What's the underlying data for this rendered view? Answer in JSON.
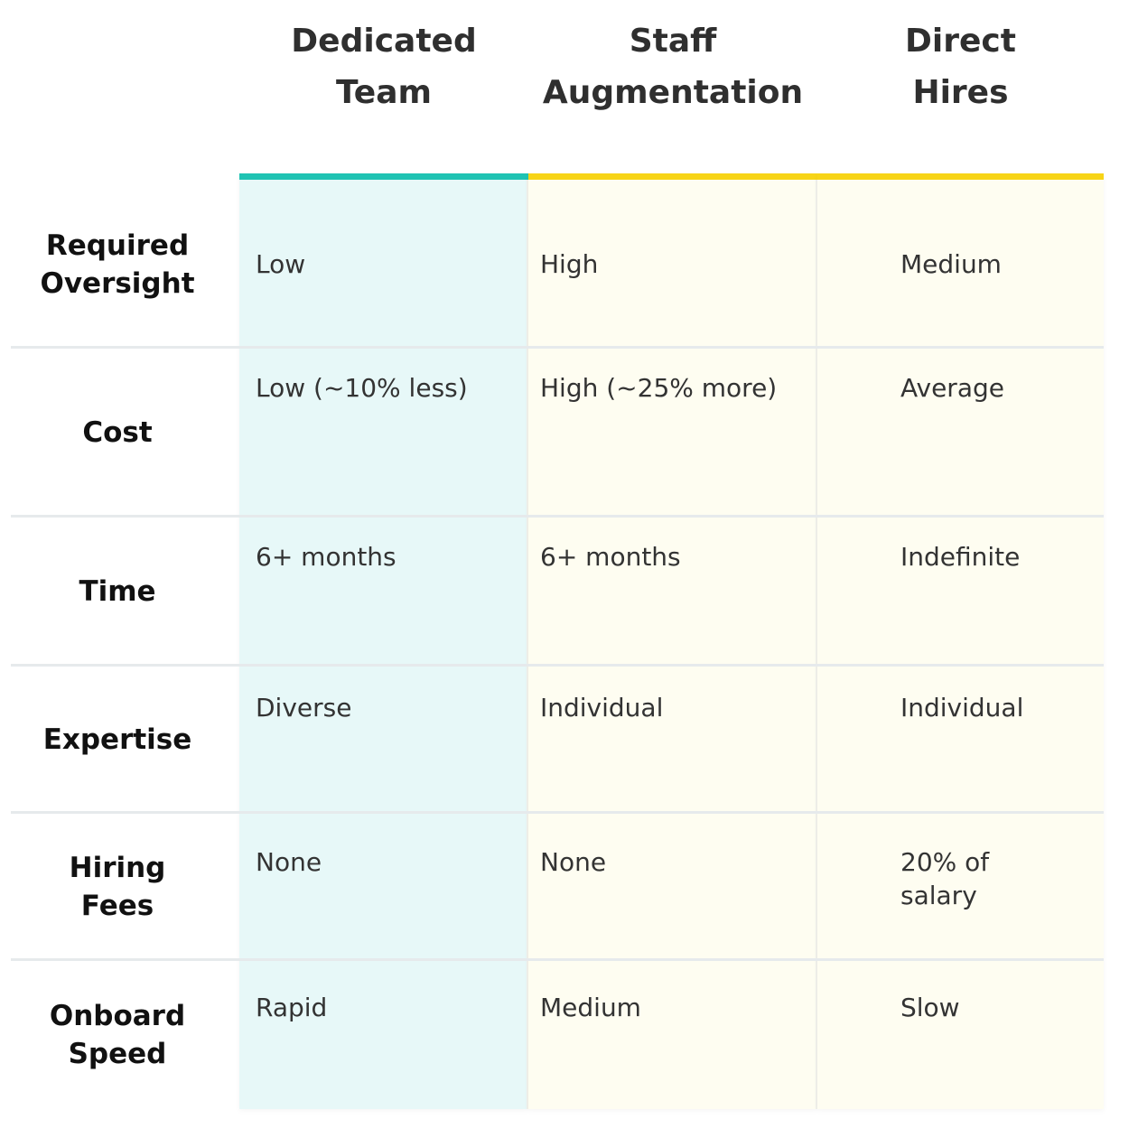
{
  "header": {
    "columns": [
      [
        "Dedicated",
        "Team"
      ],
      [
        "Staff",
        "Augmentation"
      ],
      [
        "Direct",
        "Hires"
      ]
    ]
  },
  "table": {
    "rows": [
      {
        "label": [
          "Required",
          "Oversight"
        ],
        "cells": [
          [
            "Low"
          ],
          [
            "High"
          ],
          [
            "Medium"
          ]
        ]
      },
      {
        "label": [
          "Cost"
        ],
        "cells": [
          [
            "Low (~10% less)"
          ],
          [
            "High (~25% more)"
          ],
          [
            "Average"
          ]
        ]
      },
      {
        "label": [
          "Time"
        ],
        "cells": [
          [
            "6+ months"
          ],
          [
            "6+ months"
          ],
          [
            "Indefinite"
          ]
        ]
      },
      {
        "label": [
          "Expertise"
        ],
        "cells": [
          [
            "Diverse"
          ],
          [
            "Individual"
          ],
          [
            "Individual"
          ]
        ]
      },
      {
        "label": [
          "Hiring",
          "Fees"
        ],
        "cells": [
          [
            "None"
          ],
          [
            "None"
          ],
          [
            "20% of",
            "salary"
          ]
        ]
      },
      {
        "label": [
          "Onboard",
          "Speed"
        ],
        "cells": [
          [
            "Rapid"
          ],
          [
            "Medium"
          ],
          [
            "Slow"
          ]
        ]
      }
    ]
  }
}
